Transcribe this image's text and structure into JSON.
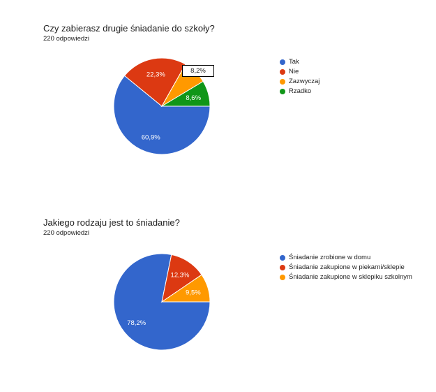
{
  "chart_data": [
    {
      "type": "pie",
      "title": "Czy zabierasz drugie śniadanie do szkoły?",
      "subtitle": "220 odpowiedzi",
      "legend_position": "right",
      "slices": [
        {
          "label": "Tak",
          "value": 60.9,
          "display": "60,9%",
          "color": "#3366cc"
        },
        {
          "label": "Nie",
          "value": 22.3,
          "display": "22,3%",
          "color": "#dc3912"
        },
        {
          "label": "Zazwyczaj",
          "value": 8.2,
          "display": "8,2%",
          "color": "#ff9900"
        },
        {
          "label": "Rzadko",
          "value": 8.6,
          "display": "8,6%",
          "color": "#109618"
        }
      ]
    },
    {
      "type": "pie",
      "title": "Jakiego rodzaju jest to śniadanie?",
      "subtitle": "220 odpowiedzi",
      "legend_position": "right",
      "slices": [
        {
          "label": "Śniadanie zrobione w domu",
          "value": 78.2,
          "display": "78,2%",
          "color": "#3366cc"
        },
        {
          "label": "Śniadanie zakupione w piekarni/sklepie",
          "value": 12.3,
          "display": "12,3%",
          "color": "#dc3912"
        },
        {
          "label": "Śniadanie zakupione w sklepiku szkolnym",
          "value": 9.5,
          "display": "9,5%",
          "color": "#ff9900"
        }
      ]
    }
  ]
}
